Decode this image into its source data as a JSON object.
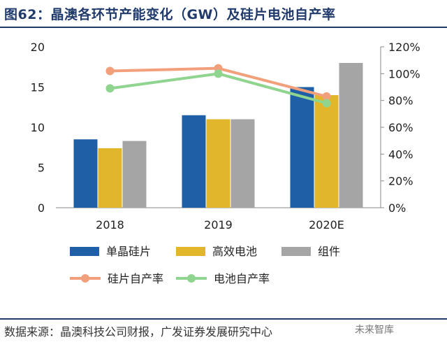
{
  "header": {
    "title": "图62：晶澳各环节产能变化（GW）及硅片电池自产率"
  },
  "footer": {
    "source": "数据来源：晶澳科技公司财报，广发证券发展研究中心",
    "watermark": "未来智库"
  },
  "colors": {
    "mono_wafer": "#1f5fa6",
    "cell": "#e2b62a",
    "module": "#a5a5a5",
    "wafer_rate": "#f2a07b",
    "cell_rate": "#8fd48f"
  },
  "chart_data": {
    "type": "bar+line",
    "title": "晶澳各环节产能变化（GW）及硅片电池自产率",
    "categories": [
      "2018",
      "2019",
      "2020E"
    ],
    "series": [
      {
        "name": "单晶硅片",
        "type": "bar",
        "axis": "left",
        "values": [
          8.5,
          11.5,
          15
        ]
      },
      {
        "name": "高效电池",
        "type": "bar",
        "axis": "left",
        "values": [
          7.4,
          11,
          14
        ]
      },
      {
        "name": "组件",
        "type": "bar",
        "axis": "left",
        "values": [
          8.3,
          11,
          18
        ]
      },
      {
        "name": "硅片自产率",
        "type": "line",
        "axis": "right",
        "values": [
          102,
          104,
          83
        ]
      },
      {
        "name": "电池自产率",
        "type": "line",
        "axis": "right",
        "values": [
          89,
          100,
          78
        ]
      }
    ],
    "y_left": {
      "min": 0,
      "max": 20,
      "ticks": [
        "0",
        "5",
        "10",
        "15",
        "20"
      ]
    },
    "y_right": {
      "min": 0,
      "max": 120,
      "ticks": [
        "0%",
        "20%",
        "40%",
        "60%",
        "80%",
        "100%",
        "120%"
      ]
    },
    "grid": false,
    "legend": "bottom"
  }
}
